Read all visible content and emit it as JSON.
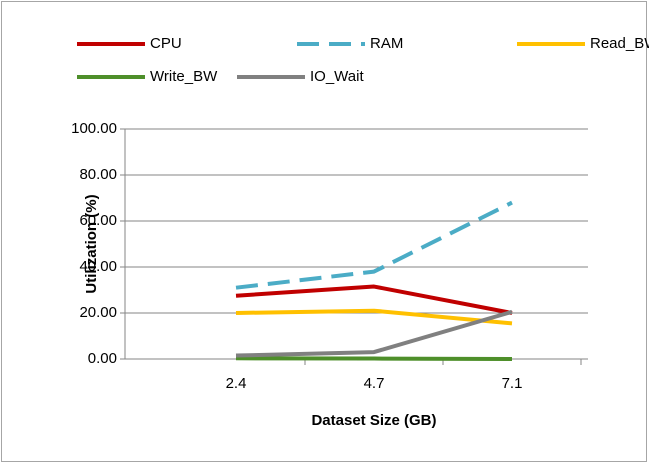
{
  "chart_data": {
    "type": "line",
    "x_label": "Dataset Size (GB)",
    "y_label": "Utilization (%)",
    "categories": [
      "2.4",
      "4.7",
      "7.1"
    ],
    "series": [
      {
        "name": "CPU",
        "color": "#c00000",
        "values": [
          27.5,
          31.5,
          20
        ]
      },
      {
        "name": "RAM",
        "color": "#4bacc6",
        "dashed": true,
        "values": [
          31,
          38,
          68
        ]
      },
      {
        "name": "Read_BW",
        "color": "#ffc000",
        "values": [
          20,
          21,
          15.5
        ]
      },
      {
        "name": "Write_BW",
        "color": "#4e8f2a",
        "values": [
          0.3,
          0.2,
          0
        ]
      },
      {
        "name": "IO_Wait",
        "color": "#808080",
        "values": [
          1.5,
          3,
          20.5
        ]
      }
    ],
    "ylim": [
      0,
      100
    ],
    "yticks": [
      {
        "value": 0,
        "label": "0.00"
      },
      {
        "value": 20,
        "label": "20.00"
      },
      {
        "value": 40,
        "label": "40.00"
      },
      {
        "value": 60,
        "label": "60.00"
      },
      {
        "value": 80,
        "label": "80.00"
      },
      {
        "value": 100,
        "label": "100.00"
      }
    ],
    "grid": true,
    "legend": "top"
  }
}
